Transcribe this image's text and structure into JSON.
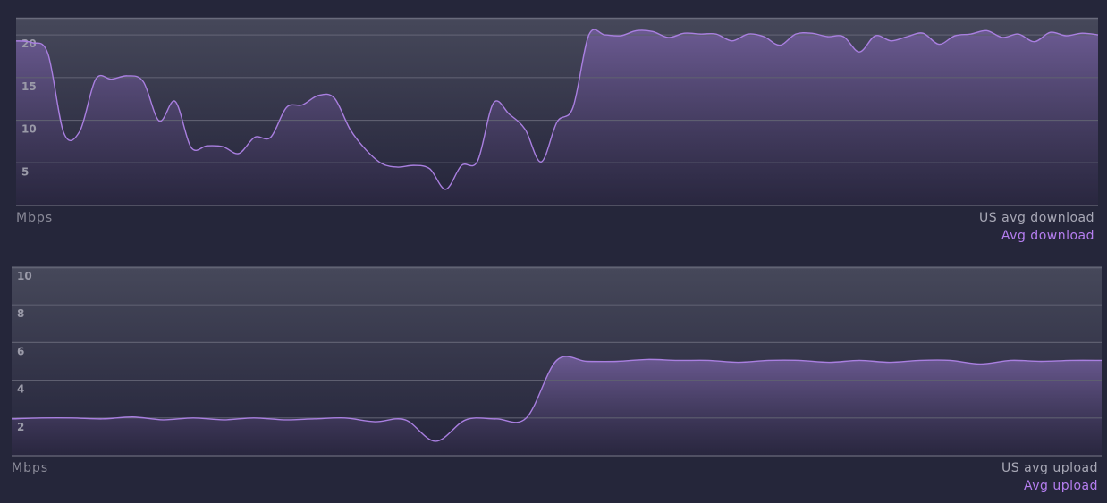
{
  "colors": {
    "background": "#25263a",
    "line": "#a97fe0",
    "fill_top": "#6d5b95",
    "legend_us": "#a8a8b6",
    "legend_avg": "#b57ef0"
  },
  "chart_data": [
    {
      "type": "area",
      "ylabel": "Mbps",
      "ylim": [
        0,
        22
      ],
      "yticks": [
        5,
        10,
        15,
        20
      ],
      "grid": true,
      "legend": [
        "US avg download",
        "Avg download"
      ],
      "legend_placement": "bottom-right",
      "series": [
        {
          "name": "Avg download",
          "values": [
            19.3,
            19.1,
            17.8,
            8.5,
            8.7,
            14.8,
            14.8,
            15.2,
            14.5,
            9.9,
            12.2,
            6.8,
            7.0,
            6.9,
            6.1,
            8.0,
            8.0,
            11.5,
            11.8,
            12.9,
            12.6,
            8.9,
            6.5,
            4.9,
            4.5,
            4.7,
            4.3,
            1.9,
            4.7,
            5.2,
            12.0,
            10.7,
            8.9,
            5.1,
            9.8,
            11.5,
            20.0,
            20.0,
            19.9,
            20.5,
            20.4,
            19.7,
            20.2,
            20.1,
            20.1,
            19.3,
            20.1,
            19.8,
            18.8,
            20.1,
            20.2,
            19.8,
            19.8,
            18.0,
            19.9,
            19.3,
            19.8,
            20.2,
            18.9,
            19.9,
            20.1,
            20.5,
            19.7,
            20.1,
            19.2,
            20.3,
            19.9,
            20.2,
            20.0
          ]
        }
      ]
    },
    {
      "type": "area",
      "ylabel": "Mbps",
      "ylim": [
        0,
        10
      ],
      "yticks": [
        2,
        4,
        6,
        8,
        10
      ],
      "grid": true,
      "legend": [
        "US avg upload",
        "Avg upload"
      ],
      "legend_placement": "bottom-right",
      "series": [
        {
          "name": "Avg upload",
          "values": [
            1.95,
            2.0,
            2.0,
            1.95,
            2.05,
            1.9,
            2.0,
            1.9,
            2.0,
            1.9,
            1.95,
            2.0,
            1.8,
            1.9,
            0.76,
            1.9,
            1.95,
            2.0,
            5.05,
            5.0,
            5.0,
            5.1,
            5.05,
            5.05,
            4.95,
            5.05,
            5.05,
            4.95,
            5.05,
            4.95,
            5.05,
            5.05,
            4.86,
            5.05,
            5.0,
            5.05,
            5.05
          ]
        }
      ]
    }
  ]
}
